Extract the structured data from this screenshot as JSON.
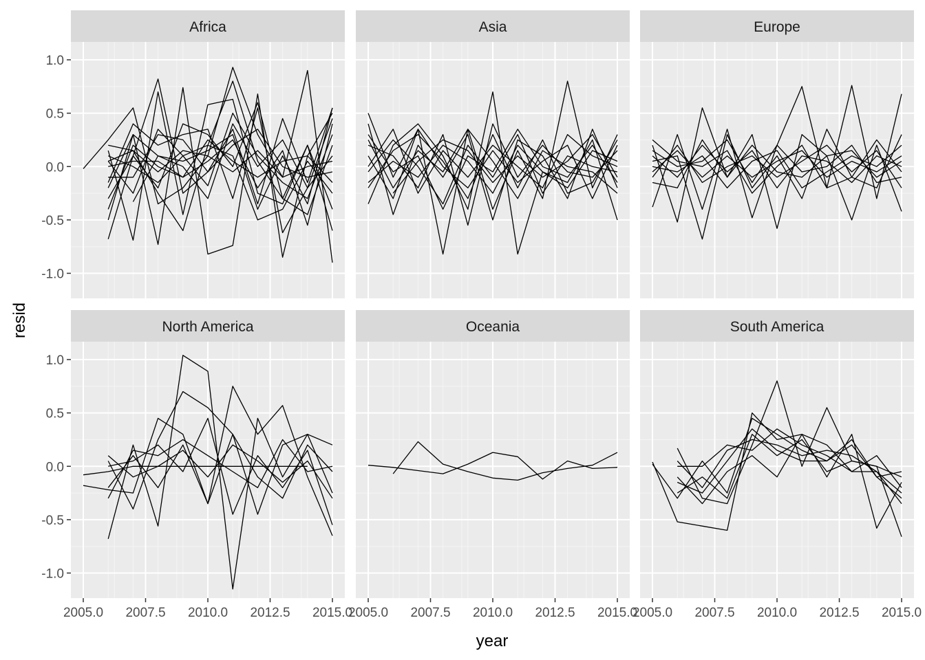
{
  "chart_data": {
    "type": "line",
    "facet": "continent",
    "xlabel": "year",
    "ylabel": "resid",
    "xlim": [
      2004.6,
      2015.4
    ],
    "ylim": [
      -1.25,
      1.25
    ],
    "x_ticks": [
      2005.0,
      2007.5,
      2010.0,
      2012.5,
      2015.0
    ],
    "x_tick_labels": [
      "2005.0",
      "2007.5",
      "2010.0",
      "2012.5",
      "2015.0"
    ],
    "y_ticks": [
      -1.0,
      -0.5,
      0.0,
      0.5,
      1.0
    ],
    "y_tick_labels": [
      "-1.0",
      "-0.5",
      "0.0",
      "0.5",
      "1.0"
    ],
    "grid": true,
    "legend": "none",
    "colors": {
      "line": "#000000",
      "panel": "#EBEBEB",
      "strip": "#D9D9D9",
      "grid": "#FFFFFF"
    },
    "panels": [
      {
        "name": "Africa",
        "x": [
          2005,
          2006,
          2007,
          2008,
          2009,
          2010,
          2011,
          2012,
          2013,
          2014,
          2015
        ],
        "series": [
          {
            "values": [
              -0.02,
              0.25,
              0.55,
              -0.35,
              -0.2,
              0.1,
              0.93,
              0.3,
              -0.1,
              0.9,
              -0.9
            ]
          },
          {
            "values": [
              null,
              -0.68,
              0.1,
              0.82,
              -0.25,
              -0.05,
              0.35,
              -0.35,
              0.45,
              -0.15,
              0.55
            ]
          },
          {
            "values": [
              null,
              -0.5,
              0.3,
              -0.73,
              0.74,
              -0.82,
              -0.74,
              0.68,
              -0.85,
              0.1,
              0.5
            ]
          },
          {
            "values": [
              null,
              0.15,
              -0.69,
              0.7,
              -0.45,
              0.58,
              0.63,
              -0.25,
              -0.35,
              0.2,
              -0.4
            ]
          },
          {
            "values": [
              null,
              -0.15,
              0.4,
              0.2,
              0.3,
              0.35,
              -0.3,
              0.55,
              -0.62,
              -0.2,
              0.45
            ]
          },
          {
            "values": [
              null,
              0.05,
              -0.25,
              0.35,
              0.1,
              0.2,
              0.1,
              -0.5,
              -0.4,
              0.05,
              -0.25
            ]
          },
          {
            "values": [
              null,
              0.1,
              0.0,
              -0.15,
              0.1,
              -0.18,
              0.5,
              0.1,
              -0.15,
              -0.3,
              0.3
            ]
          },
          {
            "values": [
              null,
              0.2,
              0.15,
              -0.25,
              -0.6,
              0.2,
              0.8,
              0.05,
              -0.3,
              -0.45,
              0.2
            ]
          },
          {
            "values": [
              null,
              -0.4,
              0.2,
              0.0,
              -0.1,
              0.05,
              0.25,
              -0.2,
              0.15,
              -0.55,
              0.4
            ]
          },
          {
            "values": [
              null,
              -0.1,
              -0.1,
              0.3,
              0.25,
              -0.05,
              0.2,
              0.35,
              0.0,
              -0.1,
              -0.05
            ]
          },
          {
            "values": [
              null,
              0.0,
              0.05,
              0.05,
              -0.1,
              0.25,
              0.05,
              -0.1,
              0.05,
              0.1,
              -0.15
            ]
          },
          {
            "values": [
              null,
              -0.2,
              0.3,
              0.1,
              0.0,
              -0.3,
              0.4,
              0.0,
              0.25,
              -0.2,
              0.1
            ]
          },
          {
            "values": [
              null,
              0.05,
              0.15,
              -0.05,
              0.15,
              0.1,
              -0.05,
              0.15,
              -0.1,
              0.0,
              0.05
            ]
          },
          {
            "values": [
              null,
              -0.3,
              0.1,
              -0.2,
              0.4,
              0.3,
              0.0,
              0.6,
              -0.3,
              0.2,
              -0.6
            ]
          },
          {
            "values": [
              null,
              null,
              -0.33,
              0.1,
              0.05,
              0.15,
              0.3,
              -0.4,
              0.1,
              -0.35,
              0.55
            ]
          }
        ]
      },
      {
        "name": "Asia",
        "x": [
          2005,
          2006,
          2007,
          2008,
          2009,
          2010,
          2011,
          2012,
          2013,
          2014,
          2015
        ],
        "series": [
          {
            "values": [
              0.5,
              -0.1,
              0.35,
              -0.82,
              0.35,
              -0.4,
              0.15,
              -0.3,
              0.8,
              -0.2,
              0.3
            ]
          },
          {
            "values": [
              -0.35,
              0.2,
              0.4,
              0.1,
              -0.4,
              0.7,
              -0.82,
              -0.05,
              -0.15,
              0.25,
              -0.5
            ]
          },
          {
            "values": [
              0.4,
              -0.45,
              0.2,
              -0.1,
              0.3,
              -0.5,
              0.25,
              0.1,
              -0.3,
              0.35,
              -0.2
            ]
          },
          {
            "values": [
              0.2,
              0.1,
              -0.2,
              0.3,
              -0.55,
              0.4,
              -0.1,
              0.2,
              -0.05,
              -0.1,
              0.15
            ]
          },
          {
            "values": [
              -0.05,
              0.25,
              0.0,
              -0.35,
              0.2,
              -0.1,
              0.3,
              -0.25,
              0.1,
              0.0,
              -0.05
            ]
          },
          {
            "values": [
              0.1,
              -0.3,
              0.35,
              0.0,
              -0.2,
              0.15,
              -0.15,
              0.05,
              0.2,
              -0.3,
              0.2
            ]
          },
          {
            "values": [
              -0.15,
              0.05,
              -0.1,
              0.2,
              0.05,
              -0.25,
              0.2,
              -0.05,
              -0.2,
              0.15,
              0.05
            ]
          },
          {
            "values": [
              0.25,
              -0.2,
              0.15,
              -0.05,
              0.35,
              0.05,
              -0.3,
              0.15,
              0.0,
              -0.05,
              -0.25
            ]
          },
          {
            "values": [
              0.0,
              0.35,
              -0.25,
              0.15,
              -0.1,
              0.2,
              0.0,
              -0.2,
              0.3,
              0.1,
              0.0
            ]
          },
          {
            "values": [
              0.3,
              -0.05,
              0.1,
              -0.4,
              0.1,
              -0.05,
              0.35,
              0.0,
              -0.1,
              0.2,
              -0.15
            ]
          },
          {
            "values": [
              -0.2,
              0.15,
              0.3,
              0.05,
              -0.3,
              0.3,
              -0.2,
              0.25,
              -0.25,
              -0.15,
              0.25
            ]
          },
          {
            "values": [
              null,
              -0.25,
              0.05,
              0.25,
              0.15,
              -0.15,
              0.1,
              -0.1,
              0.05,
              0.3,
              -0.1
            ]
          }
        ]
      },
      {
        "name": "Europe",
        "x": [
          2005,
          2006,
          2007,
          2008,
          2009,
          2010,
          2011,
          2012,
          2013,
          2014,
          2015
        ],
        "series": [
          {
            "values": [
              -0.38,
              0.3,
              -0.4,
              0.35,
              -0.48,
              0.2,
              0.75,
              -0.2,
              0.76,
              -0.3,
              0.68
            ]
          },
          {
            "values": [
              0.2,
              -0.52,
              0.55,
              -0.1,
              0.3,
              -0.58,
              0.3,
              0.1,
              -0.5,
              0.2,
              -0.42
            ]
          },
          {
            "values": [
              0.05,
              0.1,
              -0.68,
              0.3,
              -0.2,
              0.1,
              -0.3,
              0.35,
              -0.1,
              -0.2,
              0.3
            ]
          },
          {
            "values": [
              0.1,
              -0.1,
              0.2,
              -0.05,
              0.15,
              -0.2,
              0.1,
              0.05,
              -0.15,
              0.1,
              0.0
            ]
          },
          {
            "values": [
              -0.05,
              0.15,
              -0.1,
              0.1,
              -0.1,
              0.05,
              0.15,
              -0.1,
              0.05,
              -0.05,
              0.1
            ]
          },
          {
            "values": [
              0.15,
              0.0,
              0.05,
              0.25,
              -0.15,
              0.2,
              -0.05,
              0.0,
              0.2,
              -0.15,
              -0.1
            ]
          },
          {
            "values": [
              -0.1,
              0.2,
              -0.15,
              0.0,
              0.1,
              -0.1,
              0.05,
              0.2,
              -0.05,
              0.15,
              -0.2
            ]
          },
          {
            "values": [
              0.0,
              -0.05,
              0.1,
              -0.2,
              0.05,
              0.15,
              -0.2,
              -0.05,
              0.1,
              0.0,
              0.2
            ]
          },
          {
            "values": [
              0.25,
              0.05,
              0.0,
              0.15,
              -0.25,
              0.0,
              0.2,
              -0.2,
              -0.1,
              0.25,
              -0.05
            ]
          },
          {
            "values": [
              -0.15,
              -0.2,
              0.25,
              -0.1,
              0.2,
              -0.05,
              -0.1,
              0.1,
              0.15,
              -0.1,
              0.05
            ]
          }
        ]
      },
      {
        "name": "North America",
        "x": [
          2005,
          2006,
          2007,
          2008,
          2009,
          2010,
          2011,
          2012,
          2013,
          2014,
          2015
        ],
        "series": [
          {
            "values": [
              -0.08,
              -0.05,
              0.0,
              0.0,
              0.0,
              0.0,
              0.0,
              0.0,
              0.0,
              0.0,
              null
            ]
          },
          {
            "values": [
              -0.18,
              -0.22,
              -0.25,
              0.45,
              0.3,
              -0.35,
              0.75,
              0.3,
              0.57,
              -0.1,
              -0.65
            ]
          },
          {
            "values": [
              null,
              -0.68,
              0.2,
              -0.56,
              1.04,
              0.89,
              -1.15,
              0.45,
              -0.1,
              0.3,
              0.2
            ]
          },
          {
            "values": [
              null,
              0.05,
              -0.4,
              0.25,
              0.7,
              0.55,
              0.3,
              -0.45,
              0.2,
              0.3,
              -0.25
            ]
          },
          {
            "values": [
              null,
              -0.2,
              0.1,
              -0.2,
              0.2,
              -0.35,
              0.3,
              -0.1,
              -0.3,
              0.2,
              -0.05
            ]
          },
          {
            "values": [
              null,
              0.0,
              0.05,
              0.2,
              -0.05,
              0.45,
              -0.45,
              0.1,
              -0.2,
              0.15,
              -0.55
            ]
          },
          {
            "values": [
              null,
              -0.3,
              0.15,
              0.1,
              0.25,
              0.1,
              -0.05,
              -0.2,
              0.25,
              -0.05,
              0.0
            ]
          },
          {
            "values": [
              null,
              0.1,
              -0.1,
              0.0,
              0.15,
              -0.1,
              0.2,
              0.05,
              -0.15,
              0.05,
              -0.3
            ]
          }
        ]
      },
      {
        "name": "Oceania",
        "x": [
          2005,
          2006,
          2007,
          2008,
          2009,
          2010,
          2011,
          2012,
          2013,
          2014,
          2015
        ],
        "series": [
          {
            "values": [
              0.01,
              -0.01,
              -0.04,
              -0.07,
              0.02,
              0.13,
              0.09,
              -0.12,
              0.05,
              -0.02,
              -0.01
            ]
          },
          {
            "values": [
              null,
              -0.07,
              0.23,
              0.02,
              -0.05,
              -0.11,
              -0.13,
              -0.06,
              -0.02,
              0.01,
              0.13
            ]
          }
        ]
      },
      {
        "name": "South America",
        "x": [
          2005,
          2006,
          2007,
          2008,
          2009,
          2010,
          2011,
          2012,
          2013,
          2014,
          2015
        ],
        "series": [
          {
            "values": [
              0.04,
              -0.52,
              -0.56,
              -0.6,
              0.5,
              0.25,
              0.3,
              -0.1,
              0.3,
              -0.58,
              -0.15
            ]
          },
          {
            "values": [
              null,
              0.17,
              -0.3,
              -0.35,
              0.2,
              0.8,
              0.0,
              0.55,
              0.05,
              0.0,
              -0.66
            ]
          },
          {
            "values": [
              0.02,
              -0.3,
              0.05,
              -0.25,
              0.45,
              0.3,
              0.15,
              0.05,
              0.25,
              -0.1,
              -0.3
            ]
          },
          {
            "values": [
              null,
              -0.1,
              -0.35,
              -0.05,
              0.1,
              -0.1,
              0.3,
              0.2,
              -0.05,
              0.1,
              -0.2
            ]
          },
          {
            "values": [
              null,
              0.05,
              -0.2,
              0.15,
              0.25,
              0.2,
              0.1,
              0.15,
              0.1,
              -0.05,
              -0.35
            ]
          },
          {
            "values": [
              null,
              -0.25,
              -0.1,
              -0.3,
              0.3,
              0.1,
              0.25,
              -0.05,
              0.05,
              0.0,
              -0.1
            ]
          },
          {
            "values": [
              null,
              0.0,
              0.0,
              0.2,
              0.15,
              0.35,
              0.2,
              0.1,
              -0.05,
              -0.05,
              -0.25
            ]
          },
          {
            "values": [
              null,
              -0.15,
              -0.25,
              0.05,
              0.35,
              0.15,
              0.05,
              0.05,
              0.2,
              -0.1,
              -0.05
            ]
          }
        ]
      }
    ]
  }
}
